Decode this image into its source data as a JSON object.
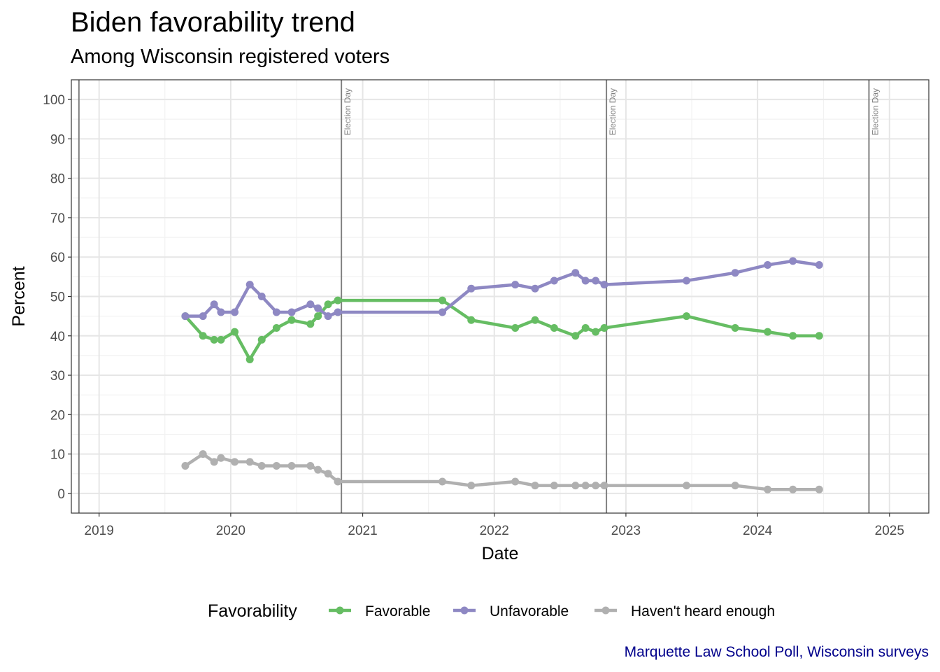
{
  "header": {
    "title": "Biden favorability trend",
    "subtitle": "Among Wisconsin registered voters"
  },
  "caption": "Marquette Law School Poll, Wisconsin surveys",
  "chart_data": {
    "type": "line",
    "title": "Biden favorability trend",
    "subtitle": "Among Wisconsin registered voters",
    "xlabel": "Date",
    "ylabel": "Percent",
    "xlim": [
      "2018-10-16",
      "2025-04-20"
    ],
    "ylim": [
      -5,
      105
    ],
    "x_ticks": [
      "2019",
      "2020",
      "2021",
      "2022",
      "2023",
      "2024",
      "2025"
    ],
    "y_ticks": [
      0,
      10,
      20,
      30,
      40,
      50,
      60,
      70,
      80,
      90,
      100
    ],
    "grid": true,
    "legend": {
      "title": "Favorability",
      "position": "bottom"
    },
    "vlines": [
      {
        "date": "2018-11-06",
        "label": ""
      },
      {
        "date": "2020-11-03",
        "label": "Election Day"
      },
      {
        "date": "2022-11-08",
        "label": "Election Day"
      },
      {
        "date": "2024-11-05",
        "label": "Election Day"
      }
    ],
    "x": [
      "2019-08-28",
      "2019-10-16",
      "2019-11-16",
      "2019-12-05",
      "2020-01-12",
      "2020-02-23",
      "2020-03-27",
      "2020-05-07",
      "2020-06-18",
      "2020-08-09",
      "2020-08-30",
      "2020-09-27",
      "2020-10-24",
      "2021-08-10",
      "2021-10-29",
      "2022-02-28",
      "2022-04-24",
      "2022-06-16",
      "2022-08-14",
      "2022-09-11",
      "2022-10-09",
      "2022-11-02",
      "2023-06-18",
      "2023-10-31",
      "2024-01-29",
      "2024-04-08",
      "2024-06-20"
    ],
    "series": [
      {
        "name": "Favorable",
        "color": "#66bd63",
        "values": [
          45,
          40,
          39,
          39,
          41,
          34,
          39,
          42,
          44,
          43,
          45,
          48,
          49,
          49,
          44,
          42,
          44,
          42,
          40,
          42,
          41,
          42,
          45,
          42,
          41,
          40,
          40
        ]
      },
      {
        "name": "Unfavorable",
        "color": "#8e88c3",
        "values": [
          45,
          45,
          48,
          46,
          46,
          53,
          50,
          46,
          46,
          48,
          47,
          45,
          46,
          46,
          52,
          53,
          52,
          54,
          56,
          54,
          54,
          53,
          54,
          56,
          58,
          59,
          58
        ]
      },
      {
        "name": "Haven't heard enough",
        "color": "#b0b0b0",
        "values": [
          7,
          10,
          8,
          9,
          8,
          8,
          7,
          7,
          7,
          7,
          6,
          5,
          3,
          3,
          2,
          3,
          2,
          2,
          2,
          2,
          2,
          2,
          2,
          2,
          1,
          1,
          1
        ]
      }
    ]
  }
}
